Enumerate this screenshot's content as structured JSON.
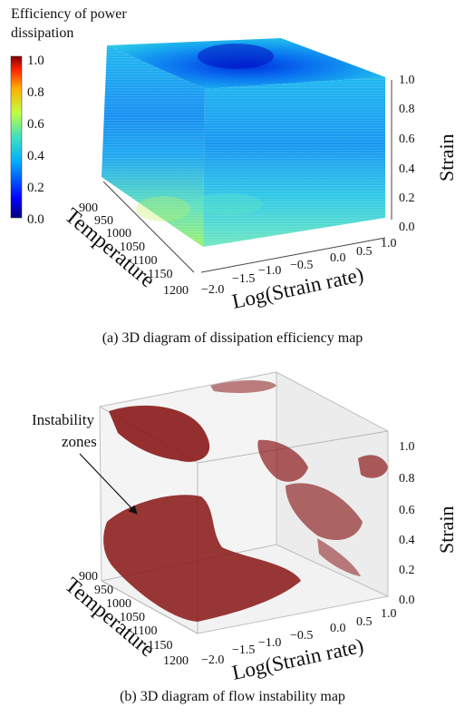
{
  "chart_data": [
    {
      "type": "heatmap",
      "subtype": "3d-volume",
      "colorbar": {
        "title_lines": [
          "Efficiency of power",
          "dissipation"
        ],
        "ticks": [
          "1.0",
          "0.8",
          "0.6",
          "0.4",
          "0.2",
          "0.0"
        ],
        "range": [
          0.0,
          1.0
        ],
        "colormap": "jet"
      },
      "axes": {
        "x": {
          "label": "Log(Strain rate)",
          "ticks": [
            "−2.0",
            "−1.5",
            "−1.0",
            "−0.5",
            "0.0",
            "0.5",
            "1.0"
          ],
          "range": [
            -2.0,
            1.0
          ]
        },
        "y": {
          "label": "Temperature",
          "ticks": [
            "900",
            "950",
            "1000",
            "1050",
            "1100",
            "1150",
            "1200"
          ],
          "range": [
            900,
            1200
          ]
        },
        "z": {
          "label": "Strain",
          "ticks": [
            "0.0",
            "0.2",
            "0.4",
            "0.6",
            "0.8",
            "1.0"
          ],
          "range": [
            0.0,
            1.0
          ]
        }
      },
      "caption": "(a) 3D diagram of dissipation efficiency map"
    },
    {
      "type": "scatter",
      "subtype": "3d-instability-regions",
      "annotation": [
        "Instability",
        "zones"
      ],
      "region_color": "#8b1a1a",
      "axes": {
        "x": {
          "label": "Log(Strain rate)",
          "ticks": [
            "−2.0",
            "−1.5",
            "−1.0",
            "−0.5",
            "0.0",
            "0.5",
            "1.0"
          ],
          "range": [
            -2.0,
            1.0
          ]
        },
        "y": {
          "label": "Temperature",
          "ticks": [
            "900",
            "950",
            "1000",
            "1050",
            "1100",
            "1150",
            "1200"
          ],
          "range": [
            900,
            1200
          ]
        },
        "z": {
          "label": "Strain",
          "ticks": [
            "0.0",
            "0.2",
            "0.4",
            "0.6",
            "0.8",
            "1.0"
          ],
          "range": [
            0.0,
            1.0
          ]
        }
      },
      "caption": "(b) 3D diagram of flow instability map"
    }
  ]
}
